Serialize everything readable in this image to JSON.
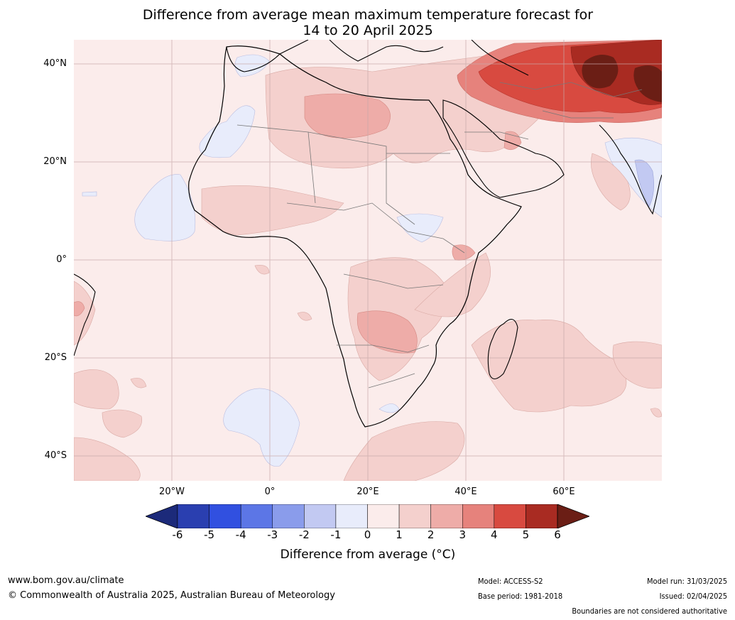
{
  "title_line1": "Difference from average mean maximum temperature forecast for",
  "title_line2": "14 to 20 April 2025",
  "lat_labels": [
    "40°N",
    "20°N",
    "0°",
    "20°S",
    "40°S"
  ],
  "lon_labels": [
    "20°W",
    "0°",
    "20°E",
    "40°E",
    "60°E"
  ],
  "colorbar": {
    "ticks": [
      "-6",
      "-5",
      "-4",
      "-3",
      "-2",
      "-1",
      "0",
      "1",
      "2",
      "3",
      "4",
      "5",
      "6"
    ],
    "colors": [
      "#1c2a7a",
      "#2a3fb0",
      "#3150e0",
      "#5c76e6",
      "#8a9ceb",
      "#c2c9f2",
      "#e8ecfb",
      "#fbeceb",
      "#f4d0cd",
      "#eeaca8",
      "#e6827c",
      "#d84a40",
      "#a92b22",
      "#6b1e15"
    ],
    "label": "Difference from average (°C)"
  },
  "footer": {
    "website": "www.bom.gov.au/climate",
    "copyright": "© Commonwealth of Australia 2025, Australian Bureau of Meteorology",
    "model": "Model: ACCESS-S2",
    "base_period": "Base period: 1981-2018",
    "model_run": "Model run: 31/03/2025",
    "issued": "Issued: 02/04/2025",
    "disclaimer": "Boundaries are not considered authoritative"
  }
}
